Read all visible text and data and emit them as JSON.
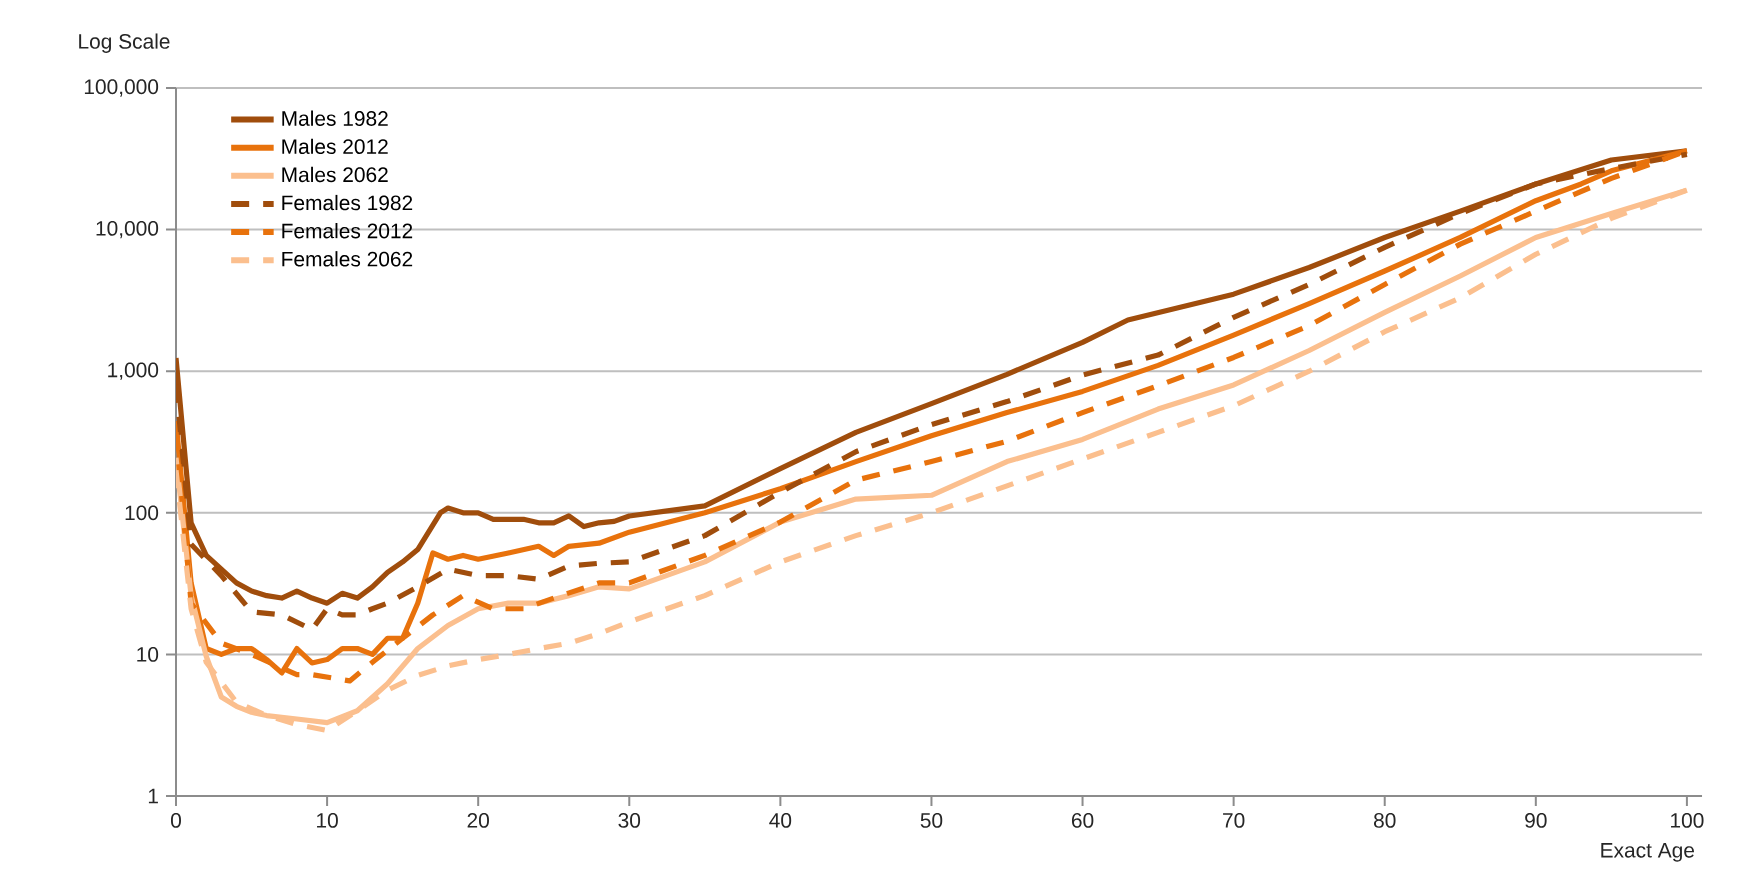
{
  "chart_data": {
    "type": "line",
    "xlabel": "Exact Age",
    "ylabel": "Log Scale",
    "log": "y",
    "grid": "y",
    "legend": "top left",
    "xlim": [
      0,
      101
    ],
    "xticks": [
      0,
      10,
      20,
      30,
      40,
      50,
      60,
      70,
      80,
      90,
      100
    ],
    "ylim": [
      1,
      100000
    ],
    "yticks": [
      1,
      10,
      100,
      {
        "value": 1000,
        "label": "1,000"
      },
      {
        "value": 10000,
        "label": "10,000"
      },
      {
        "value": 100000,
        "label": "100,000"
      }
    ],
    "series": [
      {
        "name": "Males 1982",
        "color": "#a04d0c",
        "line_style": "solid",
        "x": [
          0,
          1,
          2,
          3,
          4,
          5,
          6,
          7,
          8,
          9,
          10,
          11,
          12,
          13,
          14,
          15,
          16,
          17.5,
          18,
          19,
          20,
          21,
          22,
          23,
          24,
          25,
          26,
          27,
          28,
          29,
          30,
          35,
          40,
          45,
          50,
          55,
          60,
          63,
          70,
          75,
          80,
          85,
          90,
          95,
          100
        ],
        "values": [
          1240,
          85,
          50,
          40,
          32,
          28,
          26,
          25,
          28,
          25,
          23,
          27,
          25,
          30,
          38,
          45,
          55,
          100,
          108,
          100,
          100,
          90,
          90,
          90,
          85,
          85,
          95,
          80,
          85,
          87,
          95,
          112,
          205,
          370,
          590,
          950,
          1600,
          2300,
          3500,
          5400,
          8800,
          13500,
          21000,
          31000,
          36000
        ]
      },
      {
        "name": "Males 2012",
        "color": "#e8720c",
        "line_style": "solid",
        "x": [
          0,
          1,
          2,
          3,
          4,
          5,
          6,
          7,
          8,
          9,
          10,
          11,
          12,
          13,
          14,
          15,
          16,
          17,
          18,
          19,
          20,
          22,
          24,
          25,
          26,
          28,
          30,
          35,
          40,
          45,
          50,
          55,
          60,
          65,
          70,
          75,
          80,
          85,
          90,
          93,
          95,
          100
        ],
        "values": [
          445,
          32,
          11,
          10,
          11,
          11,
          9.2,
          7.4,
          11,
          8.7,
          9.2,
          11,
          11,
          10,
          13,
          13,
          23,
          52,
          47,
          50,
          47,
          52,
          58,
          50,
          58,
          61,
          73,
          100,
          148,
          230,
          350,
          510,
          720,
          1100,
          1800,
          3000,
          5100,
          8800,
          16000,
          21000,
          26000,
          36000
        ]
      },
      {
        "name": "Males 2062",
        "color": "#fbbf8e",
        "line_style": "solid",
        "x": [
          0,
          1,
          2,
          3,
          4,
          5,
          6,
          8,
          10,
          12,
          14,
          16,
          18,
          20,
          22,
          24,
          26,
          28,
          30,
          35,
          40,
          45,
          50,
          55,
          60,
          65,
          70,
          75,
          80,
          85,
          90,
          95,
          100
        ],
        "values": [
          245,
          26,
          9.7,
          5,
          4.3,
          3.9,
          3.7,
          3.5,
          3.3,
          4,
          6.2,
          11,
          16,
          21,
          23,
          23,
          26,
          30,
          29,
          45,
          86,
          125,
          133,
          230,
          330,
          540,
          800,
          1400,
          2600,
          4700,
          8800,
          13000,
          19000
        ]
      },
      {
        "name": "Females 1982",
        "color": "#a04d0c",
        "line_style": "dashed",
        "x": [
          0,
          1,
          3,
          5,
          7,
          9,
          10,
          11,
          12,
          13,
          14,
          16,
          18,
          20,
          22,
          24,
          26,
          28,
          30,
          35,
          40,
          45,
          50,
          55,
          60,
          65,
          70,
          75,
          80,
          85,
          90,
          95,
          100
        ],
        "values": [
          800,
          60,
          36,
          20,
          19,
          15,
          21,
          19,
          19,
          21,
          23,
          30,
          40,
          36,
          36,
          34,
          42,
          44,
          45,
          69,
          140,
          270,
          420,
          610,
          940,
          1300,
          2400,
          4100,
          7500,
          13000,
          21000,
          27000,
          34000
        ]
      },
      {
        "name": "Females 2012",
        "color": "#e8720c",
        "line_style": "dashed",
        "x": [
          0,
          1,
          3,
          5,
          8,
          9,
          11.5,
          13,
          15,
          17,
          19,
          21,
          23,
          25,
          28,
          30,
          35,
          40,
          45,
          50,
          55,
          60,
          65,
          70,
          75,
          80,
          85,
          90,
          95,
          100
        ],
        "values": [
          370,
          23,
          12,
          10,
          7.2,
          7.2,
          6.5,
          8.8,
          13,
          19,
          26,
          21,
          21,
          25,
          32,
          32,
          50,
          86,
          170,
          230,
          320,
          510,
          790,
          1250,
          2100,
          4100,
          7900,
          13500,
          23000,
          36000
        ]
      },
      {
        "name": "Females 2062",
        "color": "#fbbf8e",
        "line_style": "dashed",
        "x": [
          0,
          1,
          2,
          4,
          6,
          8,
          10,
          12,
          14,
          16,
          18,
          20,
          22,
          24,
          26,
          28,
          30,
          35,
          40,
          45,
          50,
          55,
          60,
          65,
          70,
          75,
          80,
          85,
          90,
          95,
          100
        ],
        "values": [
          200,
          21,
          8.8,
          4.6,
          3.7,
          3.2,
          2.9,
          4,
          5.6,
          7.1,
          8.3,
          9.2,
          10,
          11,
          12,
          14,
          17,
          26,
          45,
          69,
          100,
          155,
          240,
          370,
          570,
          1000,
          1900,
          3300,
          6700,
          12000,
          19000
        ]
      }
    ]
  }
}
